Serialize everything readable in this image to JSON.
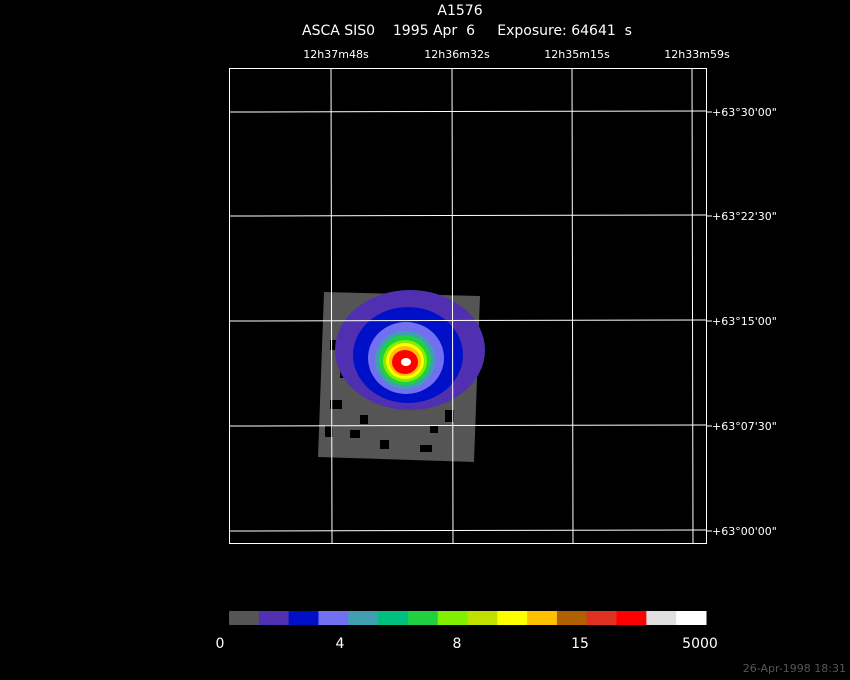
{
  "header": {
    "title": "A1576",
    "subtitle": "ASCA SIS0    1995 Apr  6     Exposure: 64641  s"
  },
  "ra_labels": [
    "12h37m48s",
    "12h36m32s",
    "12h35m15s",
    "12h33m59s"
  ],
  "dec_labels": [
    "+63°30'00\"",
    "+63°22'30\"",
    "+63°15'00\"",
    "+63°07'30\"",
    "+63°00'00\""
  ],
  "colorbar": {
    "colors": [
      "#555555",
      "#5030b0",
      "#0010c8",
      "#7070f0",
      "#40a0b0",
      "#00c080",
      "#20d040",
      "#80f000",
      "#c0e000",
      "#ffff00",
      "#ffc000",
      "#b06000",
      "#e03020",
      "#ff0000",
      "#e0e0e0",
      "#ffffff"
    ],
    "labels": [
      "0",
      "4",
      "8",
      "15",
      "5000"
    ]
  },
  "timestamp": "26-Apr-1998 18:31"
}
